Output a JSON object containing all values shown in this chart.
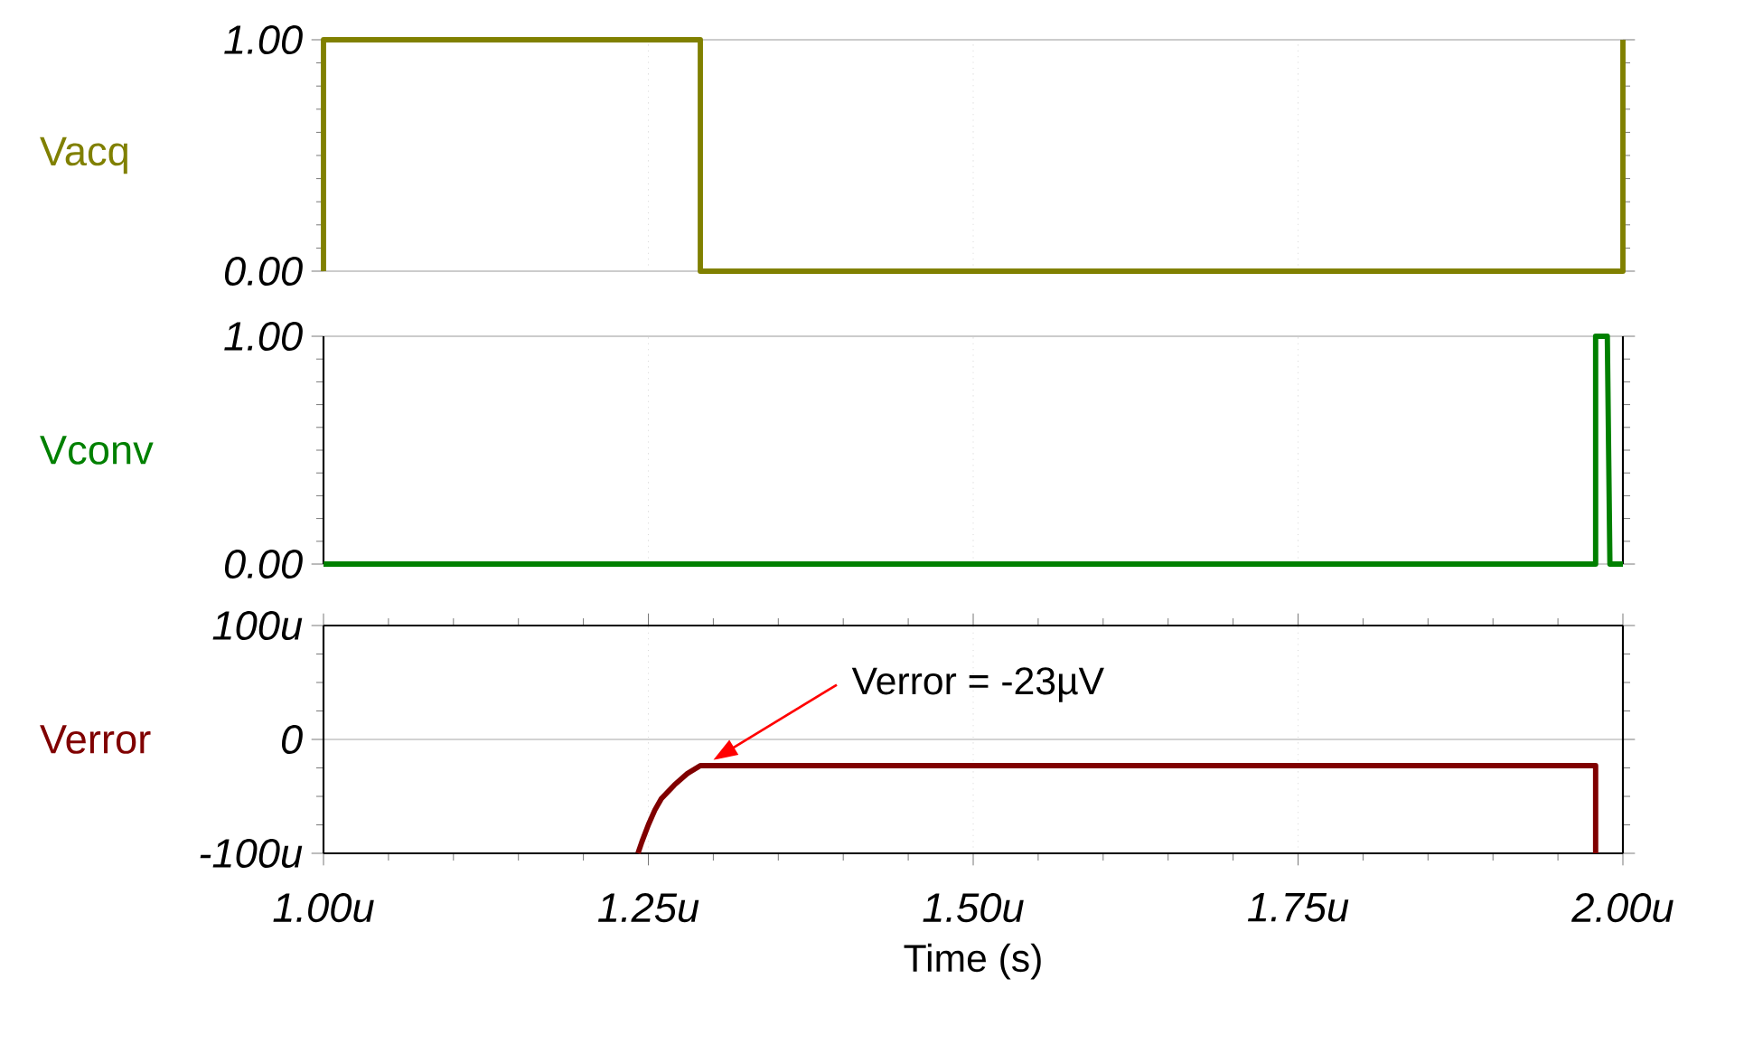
{
  "chart_data": [
    {
      "type": "line",
      "ylabel": "Vacq",
      "xlim": [
        1.0,
        2.0
      ],
      "ylim": [
        0,
        1
      ],
      "grid": true,
      "tick_labels": "y",
      "xticks": [
        {
          "value": 1.0,
          "label": null
        },
        {
          "value": 1.25,
          "label": null
        },
        {
          "value": 1.5,
          "label": null
        },
        {
          "value": 1.75,
          "label": null
        },
        {
          "value": 2.0,
          "label": null
        }
      ],
      "yticks": [
        {
          "value": 0,
          "label": "0.00"
        },
        {
          "value": 1,
          "label": "1.00"
        }
      ],
      "series": [
        {
          "color": "#808000",
          "x": [
            1.0,
            1.0,
            1.29,
            1.29,
            2.0,
            2.0
          ],
          "values": [
            0,
            1,
            1,
            0,
            0,
            1
          ]
        }
      ]
    },
    {
      "type": "line",
      "ylabel": "Vconv",
      "xlim": [
        1.0,
        2.0
      ],
      "ylim": [
        0,
        1
      ],
      "grid": true,
      "tick_labels": "y",
      "xticks": [
        {
          "value": 1.0,
          "label": null
        },
        {
          "value": 1.25,
          "label": null
        },
        {
          "value": 1.5,
          "label": null
        },
        {
          "value": 1.75,
          "label": null
        },
        {
          "value": 2.0,
          "label": null
        }
      ],
      "yticks": [
        {
          "value": 0,
          "label": "0.00"
        },
        {
          "value": 1,
          "label": "1.00"
        }
      ],
      "series": [
        {
          "color": "#008000",
          "x": [
            1.0,
            1.979,
            1.979,
            1.988,
            1.99,
            2.0
          ],
          "values": [
            0,
            0,
            1,
            1,
            0,
            0
          ]
        }
      ]
    },
    {
      "type": "line",
      "ylabel": "Verror",
      "xlabel": "Time (s)",
      "xlim": [
        1.0,
        2.0
      ],
      "ylim": [
        -100,
        100
      ],
      "grid": true,
      "xticks": [
        {
          "value": 1.0,
          "label": "1.00u"
        },
        {
          "value": 1.25,
          "label": "1.25u"
        },
        {
          "value": 1.5,
          "label": "1.50u"
        },
        {
          "value": 1.75,
          "label": "1.75u"
        },
        {
          "value": 2.0,
          "label": "2.00u"
        }
      ],
      "yticks": [
        {
          "value": -100,
          "label": "-100u"
        },
        0,
        {
          "value": 100,
          "label": "100u"
        }
      ],
      "annotations": [
        "Verror = -23µV"
      ],
      "series": [
        {
          "color": "#800000",
          "x": [
            1.242,
            1.245,
            1.25,
            1.255,
            1.26,
            1.27,
            1.28,
            1.29,
            1.979,
            1.979
          ],
          "values": [
            -100,
            -90,
            -75,
            -62,
            -52,
            -40,
            -30,
            -23,
            -23,
            -100
          ]
        }
      ]
    }
  ]
}
